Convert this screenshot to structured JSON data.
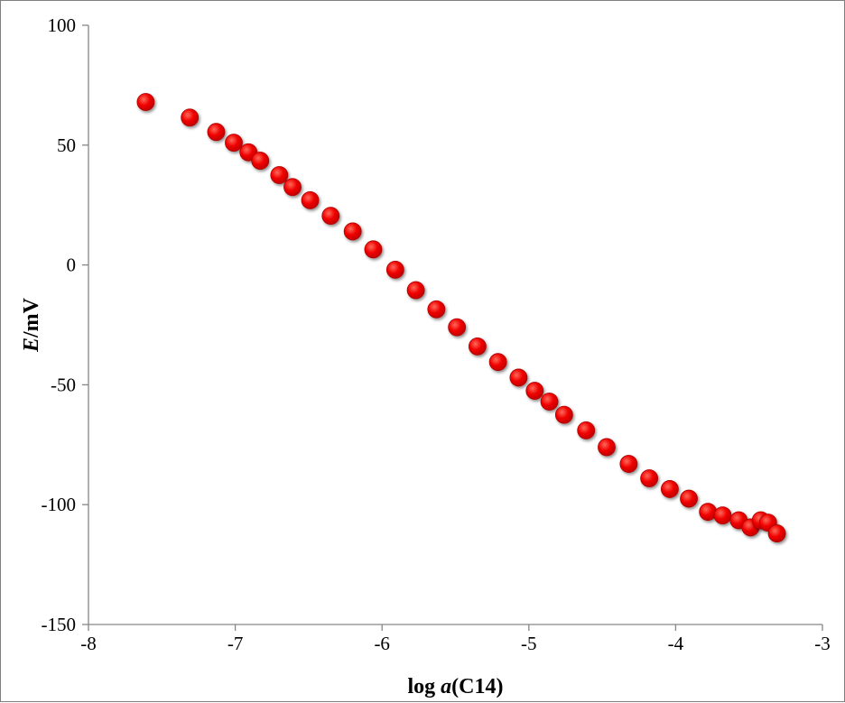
{
  "chart_data": {
    "type": "scatter",
    "xlabel_prefix": "log ",
    "xlabel_var": "a",
    "xlabel_suffix": "(C14)",
    "ylabel_var": "E",
    "ylabel_suffix": "/mV",
    "xlim": [
      -8,
      -3
    ],
    "ylim": [
      -150,
      100
    ],
    "x_ticks": [
      -8,
      -7,
      -6,
      -5,
      -4,
      -3
    ],
    "y_ticks": [
      -150,
      -100,
      -50,
      0,
      50,
      100
    ],
    "grid": false,
    "marker_color": "#ff0000",
    "series": [
      {
        "points": [
          {
            "x": -7.61,
            "y": 68
          },
          {
            "x": -7.31,
            "y": 61.5
          },
          {
            "x": -7.13,
            "y": 55.5
          },
          {
            "x": -7.01,
            "y": 51
          },
          {
            "x": -6.91,
            "y": 47
          },
          {
            "x": -6.83,
            "y": 43.5
          },
          {
            "x": -6.7,
            "y": 37.5
          },
          {
            "x": -6.61,
            "y": 32.5
          },
          {
            "x": -6.49,
            "y": 27
          },
          {
            "x": -6.35,
            "y": 20.5
          },
          {
            "x": -6.2,
            "y": 14
          },
          {
            "x": -6.06,
            "y": 6.5
          },
          {
            "x": -5.91,
            "y": -2
          },
          {
            "x": -5.77,
            "y": -10.5
          },
          {
            "x": -5.63,
            "y": -18.5
          },
          {
            "x": -5.49,
            "y": -26
          },
          {
            "x": -5.35,
            "y": -34
          },
          {
            "x": -5.21,
            "y": -40.5
          },
          {
            "x": -5.07,
            "y": -47
          },
          {
            "x": -4.96,
            "y": -52.5
          },
          {
            "x": -4.86,
            "y": -57
          },
          {
            "x": -4.76,
            "y": -62.5
          },
          {
            "x": -4.61,
            "y": -69
          },
          {
            "x": -4.47,
            "y": -76
          },
          {
            "x": -4.32,
            "y": -83
          },
          {
            "x": -4.18,
            "y": -89
          },
          {
            "x": -4.04,
            "y": -93.5
          },
          {
            "x": -3.91,
            "y": -97.5
          },
          {
            "x": -3.78,
            "y": -103
          },
          {
            "x": -3.68,
            "y": -104.5
          },
          {
            "x": -3.57,
            "y": -106.5
          },
          {
            "x": -3.49,
            "y": -109.5
          },
          {
            "x": -3.42,
            "y": -106.5
          },
          {
            "x": -3.37,
            "y": -107.5
          },
          {
            "x": -3.31,
            "y": -112
          }
        ]
      }
    ]
  }
}
